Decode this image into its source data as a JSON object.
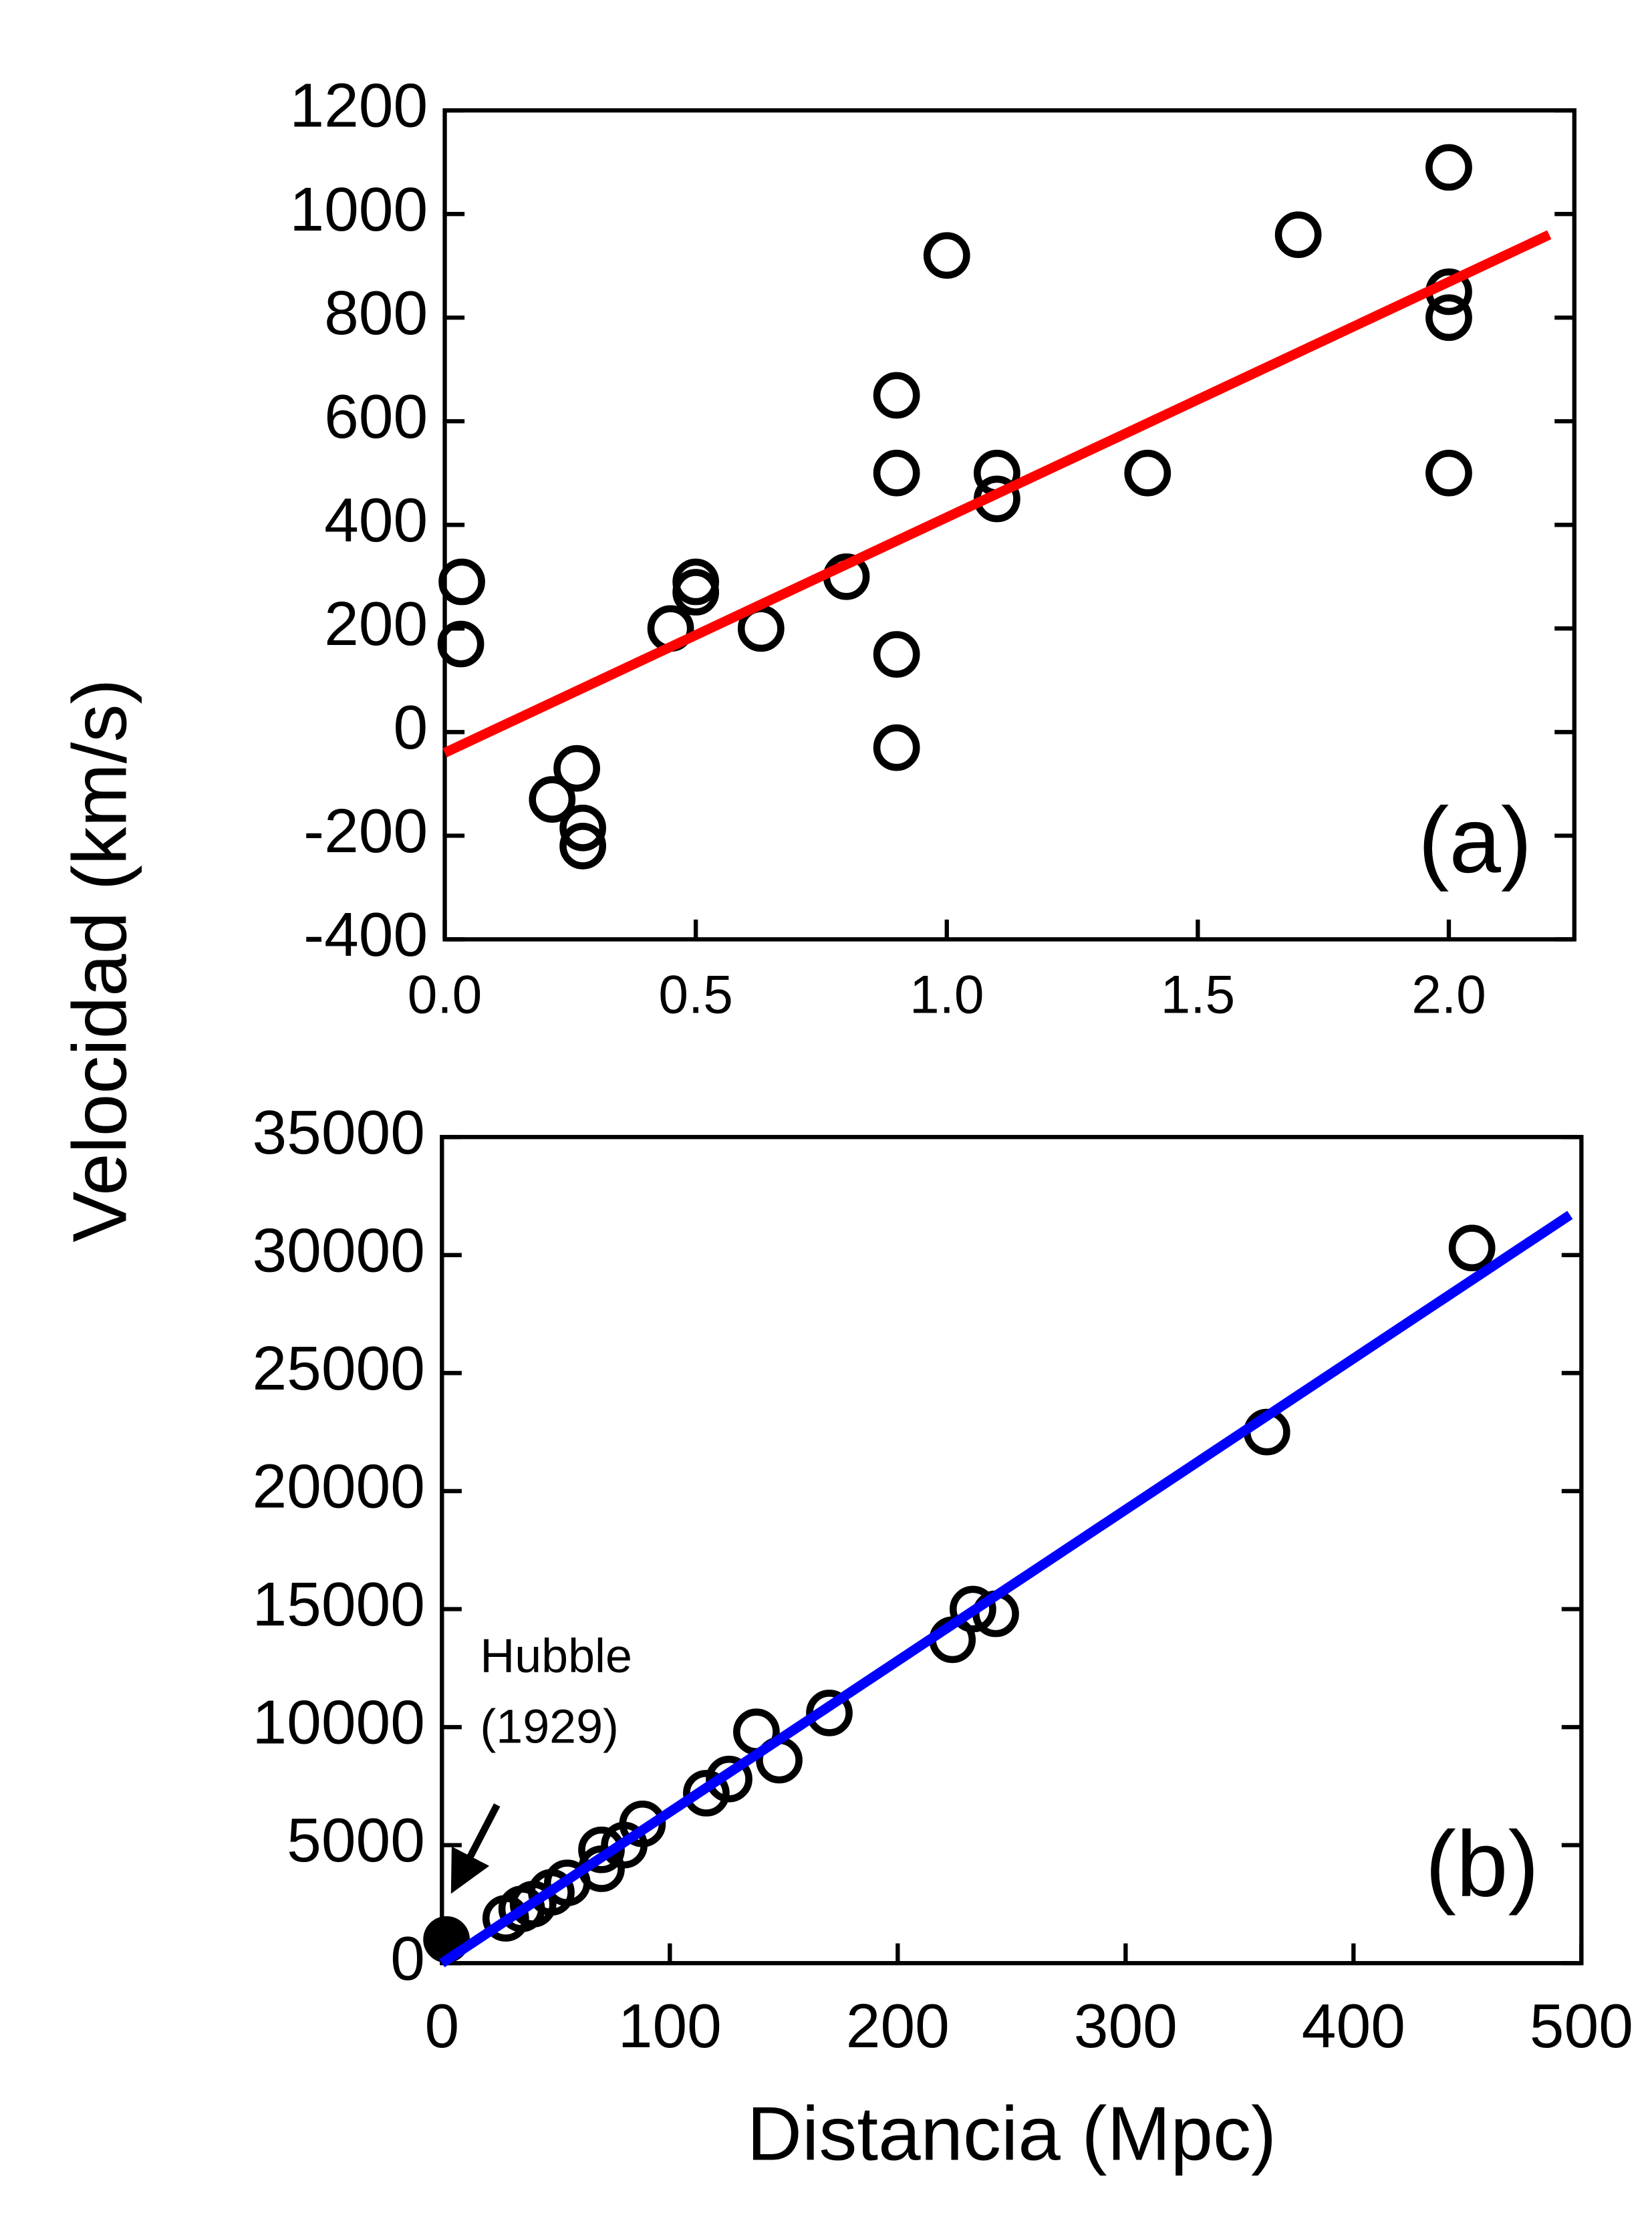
{
  "chart_data": [
    {
      "type": "scatter",
      "panel_label": "(a)",
      "ylabel": "Velocidad (km/s)",
      "xlim": [
        0,
        2.25
      ],
      "ylim": [
        -400,
        1200
      ],
      "xticks": [
        {
          "value": 0,
          "label": "0.0"
        },
        0.5,
        {
          "value": 1,
          "label": "1.0"
        },
        1.5,
        {
          "value": 2,
          "label": "2.0"
        }
      ],
      "yticks": [
        -400,
        -200,
        0,
        200,
        400,
        600,
        800,
        1000,
        1200
      ],
      "series": [
        {
          "mode": "markers",
          "color": "#000000",
          "x": [
            0.032,
            0.034,
            0.214,
            0.263,
            0.275,
            0.275,
            0.45,
            0.5,
            0.5,
            0.63,
            0.8,
            0.9,
            0.9,
            0.9,
            0.9,
            1.0,
            1.1,
            1.1,
            1.4,
            1.7,
            2.0,
            2.0,
            2.0,
            2.0
          ],
          "values": [
            170,
            290,
            -130,
            -70,
            -185,
            -220,
            200,
            290,
            270,
            200,
            300,
            -30,
            650,
            150,
            500,
            920,
            450,
            500,
            500,
            960,
            500,
            850,
            800,
            1090
          ]
        },
        {
          "mode": "line",
          "color": "#ff0000",
          "x": [
            0,
            2.2
          ],
          "values": [
            -40,
            960
          ]
        }
      ]
    },
    {
      "type": "scatter",
      "panel_label": "(b)",
      "xlabel": "Distancia (Mpc)",
      "annotation": [
        "Hubble",
        "(1929)"
      ],
      "xlim": [
        0,
        500
      ],
      "ylim": [
        0,
        35000
      ],
      "xticks": [
        0,
        100,
        200,
        300,
        400,
        500
      ],
      "yticks": [
        0,
        5000,
        10000,
        15000,
        20000,
        25000,
        30000,
        35000
      ],
      "series": [
        {
          "mode": "markers",
          "color": "#000000",
          "x": [
            28,
            35,
            40,
            48,
            55,
            70,
            70,
            80,
            88,
            116,
            126,
            138,
            148,
            170,
            224,
            233,
            243,
            362,
            452
          ],
          "values": [
            1900,
            2300,
            2500,
            3000,
            3400,
            4000,
            4800,
            5000,
            5900,
            7200,
            7800,
            9800,
            8600,
            10600,
            13700,
            15000,
            14800,
            22500,
            30300
          ]
        },
        {
          "mode": "filled",
          "color": "#000000",
          "x": [
            2
          ],
          "values": [
            1000
          ]
        },
        {
          "mode": "line",
          "color": "#0000ff",
          "x": [
            0,
            495
          ],
          "values": [
            0,
            31700
          ]
        }
      ]
    }
  ]
}
